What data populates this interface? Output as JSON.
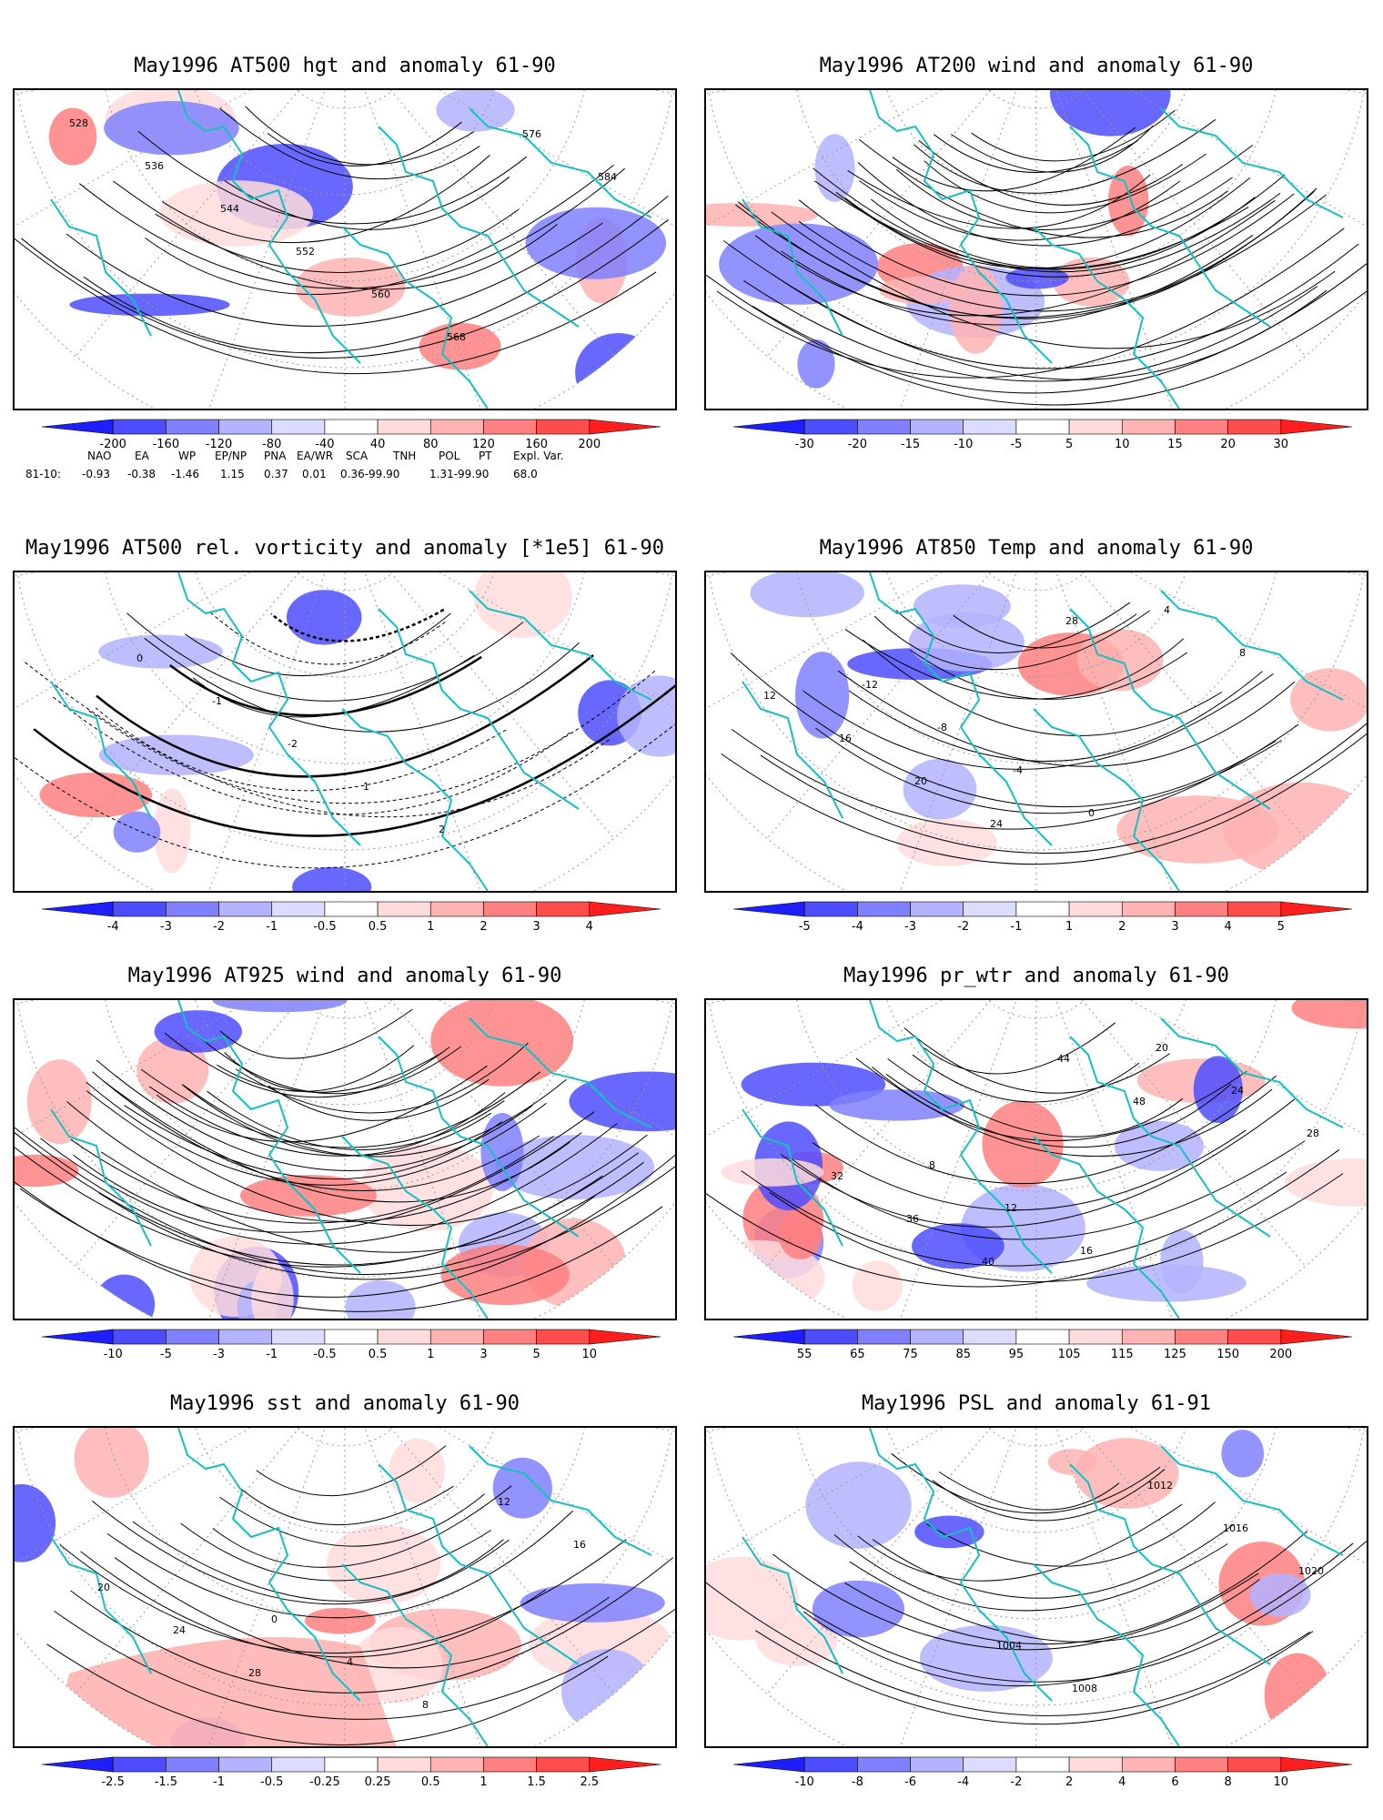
{
  "panels": [
    {
      "title": "May1996 AT500 hgt and anomaly 61-90",
      "contour_labels": [
        "528",
        "536",
        "544",
        "552",
        "560",
        "568",
        "576",
        "584"
      ],
      "colorbar": [
        "-200",
        "-160",
        "-120",
        "-80",
        "-40",
        "40",
        "80",
        "120",
        "160",
        "200"
      ]
    },
    {
      "title": "May1996 AT200 wind and anomaly 61-90",
      "colorbar": [
        "-30",
        "-20",
        "-15",
        "-10",
        "-5",
        "5",
        "10",
        "15",
        "20",
        "30"
      ]
    },
    {
      "title": "May1996 AT500 rel. vorticity and anomaly [*1e5] 61-90",
      "contour_labels": [
        "0",
        "-1",
        "-2",
        "1",
        "2"
      ],
      "colorbar": [
        "-4",
        "-3",
        "-2",
        "-1",
        "-0.5",
        "0.5",
        "1",
        "2",
        "3",
        "4"
      ]
    },
    {
      "title": "May1996 AT850 Temp and anomaly 61-90",
      "contour_labels": [
        "-12",
        "-8",
        "-4",
        "0",
        "4",
        "8",
        "12",
        "16",
        "20",
        "24",
        "28"
      ],
      "colorbar": [
        "-5",
        "-4",
        "-3",
        "-2",
        "-1",
        "1",
        "2",
        "3",
        "4",
        "5"
      ]
    },
    {
      "title": "May1996 AT925 wind and anomaly 61-90",
      "colorbar": [
        "-10",
        "-5",
        "-3",
        "-1",
        "-0.5",
        "0.5",
        "1",
        "3",
        "5",
        "10"
      ]
    },
    {
      "title": "May1996 pr_wtr and anomaly 61-90",
      "contour_labels": [
        "8",
        "12",
        "16",
        "20",
        "24",
        "28",
        "32",
        "36",
        "40",
        "44",
        "48"
      ],
      "colorbar": [
        "55",
        "65",
        "75",
        "85",
        "95",
        "105",
        "115",
        "125",
        "150",
        "200"
      ]
    },
    {
      "title": "May1996 sst and anomaly 61-90",
      "contour_labels": [
        "0",
        "4",
        "8",
        "12",
        "16",
        "20",
        "24",
        "28"
      ],
      "colorbar": [
        "-2.5",
        "-1.5",
        "-1",
        "-0.5",
        "-0.25",
        "0.25",
        "0.5",
        "1",
        "1.5",
        "2.5"
      ]
    },
    {
      "title": "May1996 PSL and anomaly 61-91",
      "contour_labels": [
        "1004",
        "1008",
        "1012",
        "1016",
        "1020"
      ],
      "colorbar": [
        "-10",
        "-8",
        "-6",
        "-4",
        "-2",
        "2",
        "4",
        "6",
        "8",
        "10"
      ]
    }
  ],
  "teleconnections": {
    "headers": [
      "NAO",
      "EA",
      "WP",
      "EP/NP",
      "PNA",
      "EA/WR",
      "SCA",
      "TNH",
      "POL",
      "PT",
      "Expl. Var."
    ],
    "row_label": "81-10:",
    "values": [
      "-0.93",
      "-0.38",
      "-1.46",
      "1.15",
      "0.37",
      "0.01",
      "0.36-99.90",
      "1.31-99.90",
      "68.0"
    ]
  },
  "colors": {
    "coast": "#19bfbf",
    "contour": "#000000",
    "blue_scale": [
      "#1e1eff",
      "#4d4dff",
      "#8080ff",
      "#b3b3ff",
      "#dcdcff"
    ],
    "red_scale": [
      "#ffdcdc",
      "#ffb3b3",
      "#ff8080",
      "#ff4d4d",
      "#ff1e1e"
    ]
  }
}
